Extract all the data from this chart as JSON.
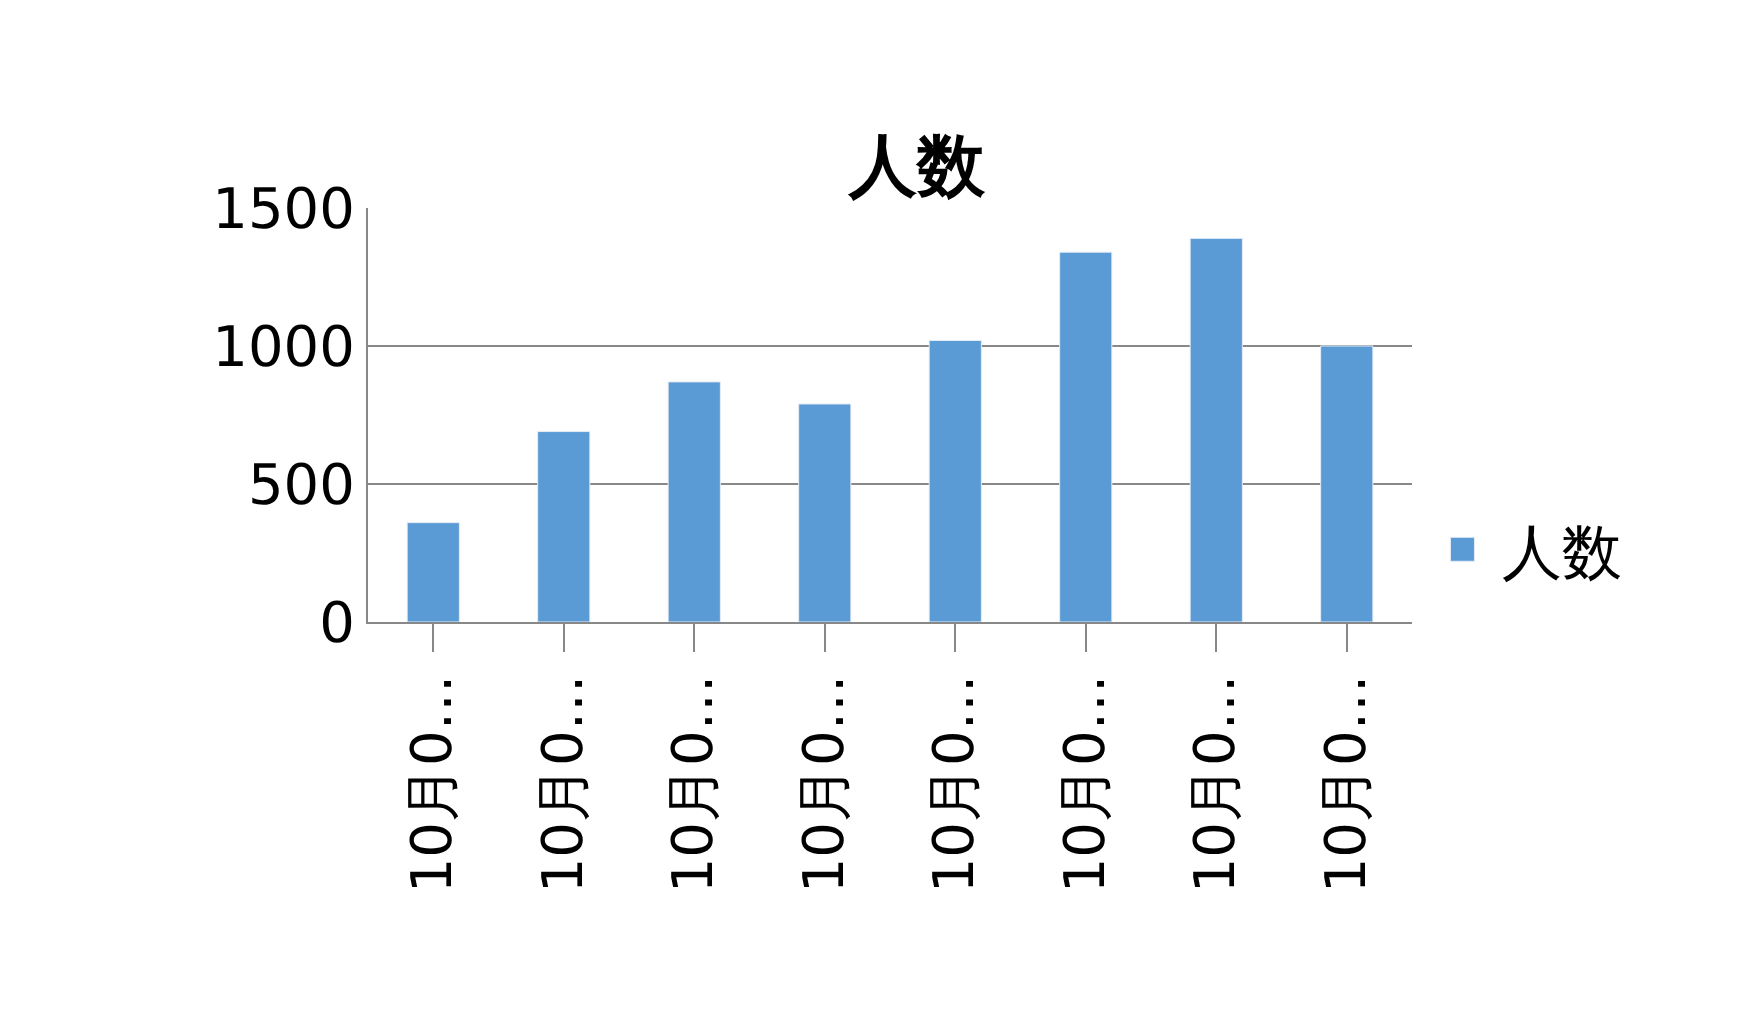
{
  "chart_data": {
    "type": "bar",
    "title": "人数",
    "categories": [
      "10月0…",
      "10月0…",
      "10月0…",
      "10月0…",
      "10月0…",
      "10月0…",
      "10月0…",
      "10月0…"
    ],
    "series": [
      {
        "name": "人数",
        "color": "#5b9bd5",
        "values": [
          360,
          690,
          870,
          790,
          1020,
          1340,
          1390,
          1000
        ]
      }
    ],
    "ylim": [
      0,
      1500
    ],
    "yticks": [
      0,
      500,
      1000,
      1500
    ],
    "grid": "y",
    "legend": "right"
  }
}
